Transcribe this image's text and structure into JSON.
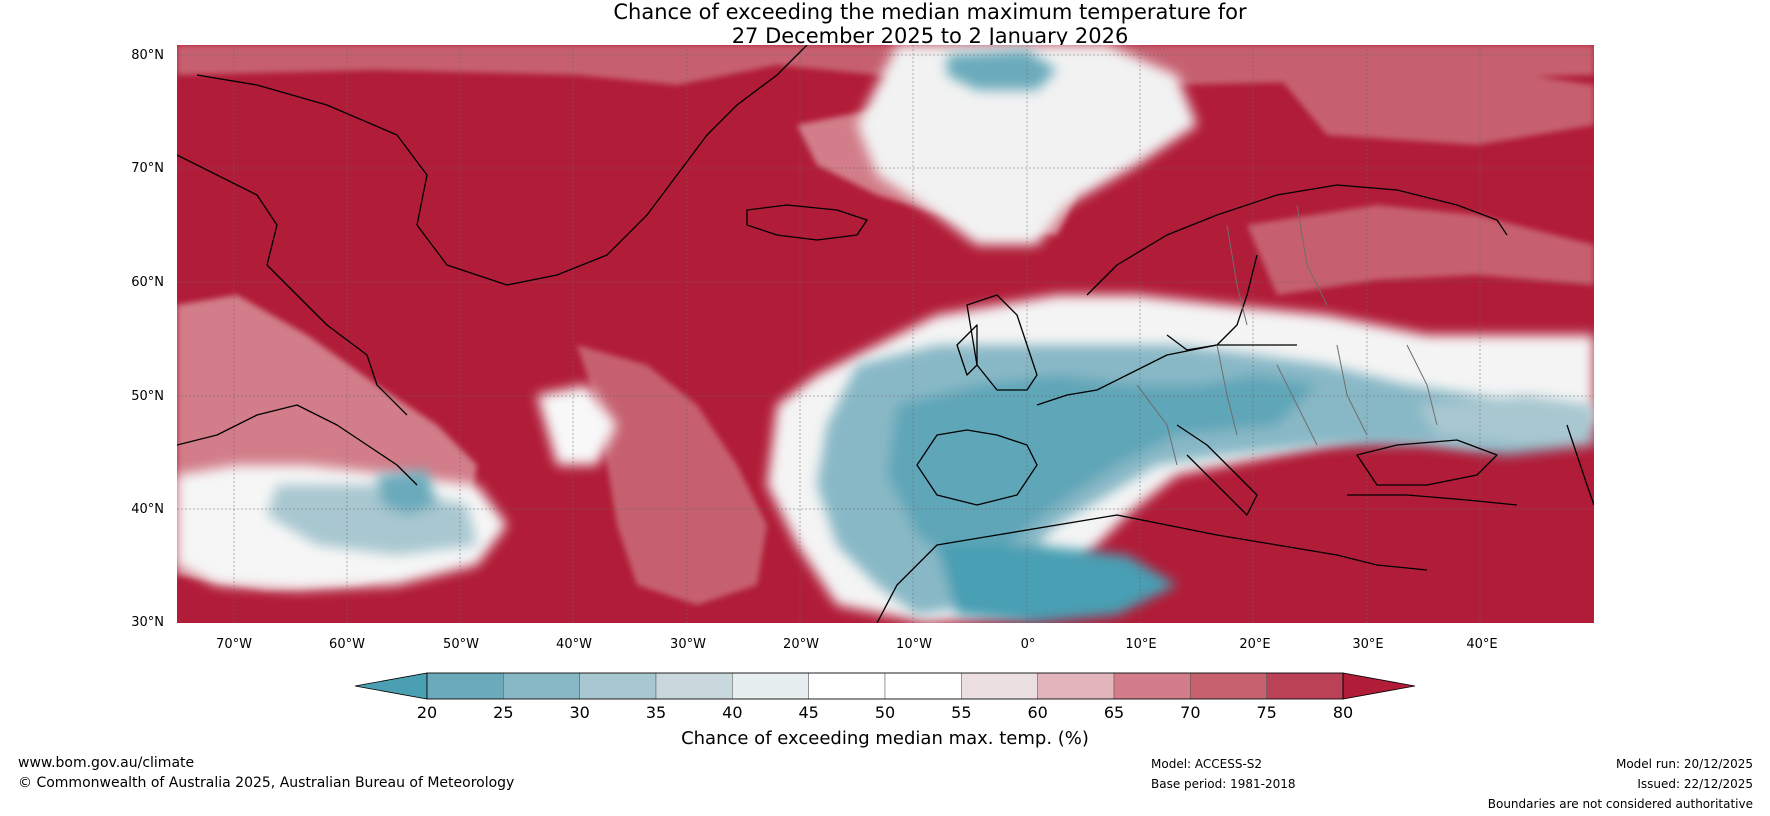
{
  "title": {
    "line1": "Chance of exceeding the median maximum temperature for",
    "line2": "27 December 2025 to 2 January 2026"
  },
  "map": {
    "lat_labels": [
      "80°N",
      "70°N",
      "60°N",
      "50°N",
      "40°N",
      "30°N"
    ],
    "lon_labels": [
      "70°W",
      "60°W",
      "50°W",
      "40°W",
      "30°W",
      "20°W",
      "10°W",
      "0°",
      "10°E",
      "20°E",
      "30°E",
      "40°E"
    ],
    "lat_range": [
      30,
      81
    ],
    "lon_range": [
      -75,
      50
    ]
  },
  "colorbar": {
    "ticks": [
      "20",
      "25",
      "30",
      "35",
      "40",
      "45",
      "50",
      "55",
      "60",
      "65",
      "70",
      "75",
      "80"
    ],
    "colors": [
      "#4a9fb3",
      "#6aaabb",
      "#88b8c6",
      "#a8c7d0",
      "#c9d8dd",
      "#e7eef0",
      "#ffffff",
      "#ffffff",
      "#ecdfe2",
      "#e3b5bd",
      "#d27d89",
      "#c6616f",
      "#bb4256",
      "#b11c38"
    ],
    "label": "Chance of exceeding median max. temp. (%)"
  },
  "footer": {
    "website": "www.bom.gov.au/climate",
    "copyright": "© Commonwealth of Australia 2025, Australian Bureau of Meteorology",
    "model": "Model: ACCESS-S2",
    "base_period": "Base period: 1981-2018",
    "model_run": "Model run: 20/12/2025",
    "issued": "Issued: 22/12/2025",
    "disclaimer": "Boundaries are not considered authoritative"
  }
}
